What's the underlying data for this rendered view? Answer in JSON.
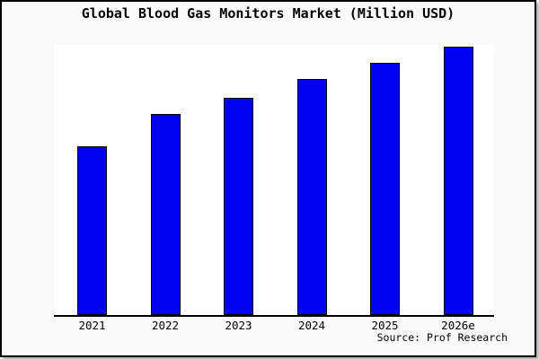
{
  "window": {
    "background": "#fafafa",
    "border_color": "#000000"
  },
  "title": "Global Blood Gas Monitors Market (Million USD)",
  "source_credit": "Source: Prof Research",
  "chart_data": {
    "type": "bar",
    "title": "Global Blood Gas Monitors Market (Million USD)",
    "categories": [
      "2021",
      "2022",
      "2023",
      "2024",
      "2025",
      "2026e"
    ],
    "values": [
      63,
      75,
      81,
      88,
      94,
      100
    ],
    "values_unit": "relative bar height, % of tallest bar (chart shows no numeric value axis)",
    "xlabel": "",
    "ylabel": "",
    "ylim": [
      0,
      101
    ],
    "grid": false,
    "legend": false,
    "bar_color": "#0000ee",
    "bar_border_color": "#000000",
    "plot_background": "#ffffff",
    "outer_background": "#fafafa",
    "source": "Source: Prof Research"
  }
}
